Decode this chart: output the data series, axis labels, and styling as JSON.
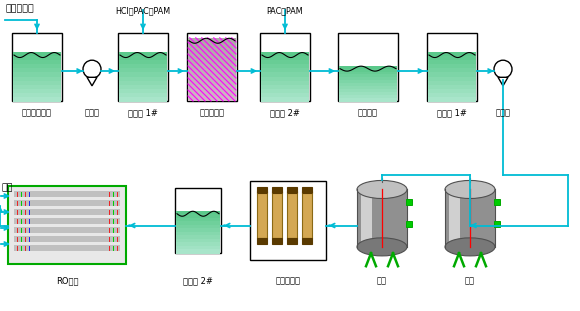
{
  "bg_color": "#ffffff",
  "cyan": "#00bcd4",
  "black": "#000000",
  "white": "#ffffff",
  "magenta": "#ff00ff",
  "green": "#00aa00",
  "red": "#ff0000",
  "water_green": "#6dbf9a",
  "water_light": "#c8e8d8",
  "inlet_label": "低浓度废水",
  "chemical1": "HCl、PAC、PAM",
  "chemical2": "PAC、PAM",
  "recycle_label": "回用",
  "row1_labels": [
    "低浓度调节池",
    "提升泵",
    "反应槽 1#",
    "斜板沉定池",
    "反应槽 2#",
    "气浮装置",
    "中水池 1#",
    "增压泵"
  ],
  "row2_labels": [
    "RO系统",
    "中水池 2#",
    "超滤膜装置",
    "炭滤",
    "砂滤"
  ]
}
